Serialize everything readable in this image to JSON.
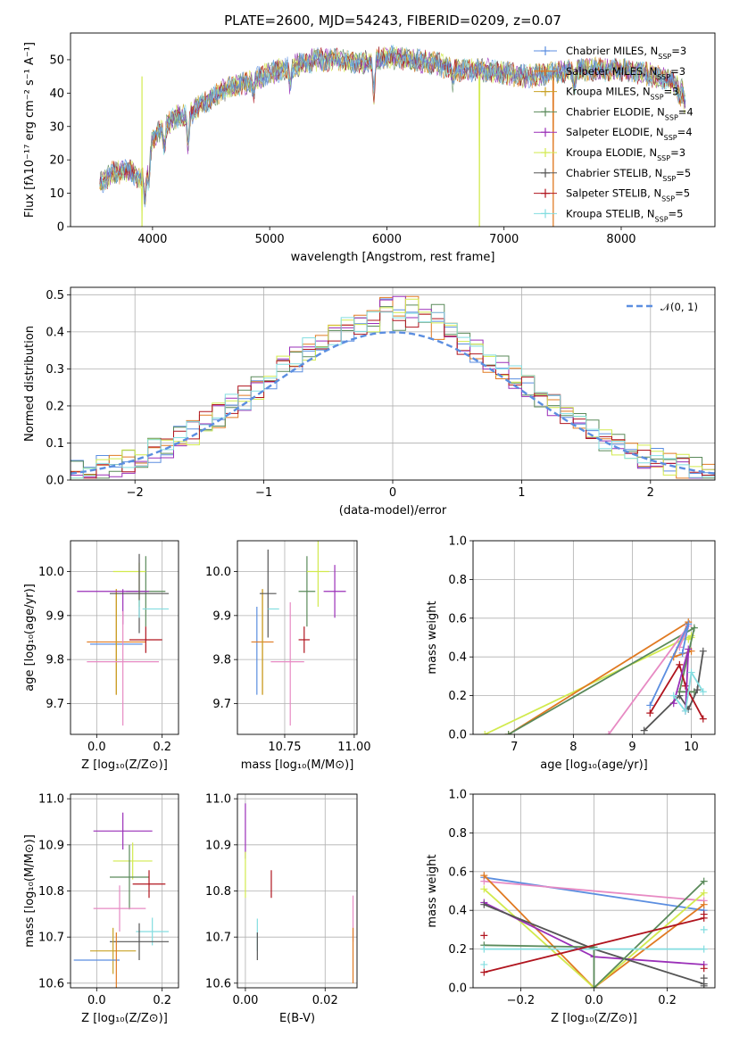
{
  "figure": {
    "title": "PLATE=2600, MJD=54243, FIBERID=0209, z=0.07"
  },
  "colors": {
    "blue": "#5b8ee0",
    "orange": "#e07a22",
    "olive": "#c9a227",
    "green": "#5a8a5a",
    "purple": "#9a2fb8",
    "yellowgreen": "#d2ea4e",
    "darkgray": "#555555",
    "red": "#b0141e",
    "cyan": "#83dde0",
    "pink": "#e78ac3"
  },
  "chart_data": [
    {
      "type": "line",
      "id": "spectrum",
      "xlabel": "wavelength [Angstrom, rest frame]",
      "ylabel": "Flux [fλ10⁻¹⁷ erg cm⁻² s⁻¹ A⁻¹]",
      "xlim": [
        3300,
        8800
      ],
      "ylim": [
        0,
        58
      ],
      "xticks": [
        4000,
        5000,
        6000,
        7000,
        8000
      ],
      "yticks": [
        0,
        10,
        20,
        30,
        40,
        50
      ],
      "grid": false,
      "legend_position": "top-right",
      "continuum": [
        [
          3550,
          13
        ],
        [
          3650,
          16
        ],
        [
          3800,
          17
        ],
        [
          3900,
          14
        ],
        [
          3950,
          17
        ],
        [
          4000,
          26
        ],
        [
          4100,
          30
        ],
        [
          4200,
          33
        ],
        [
          4300,
          33
        ],
        [
          4400,
          36
        ],
        [
          4600,
          41
        ],
        [
          4800,
          43
        ],
        [
          5000,
          46
        ],
        [
          5200,
          48
        ],
        [
          5400,
          50
        ],
        [
          5600,
          50
        ],
        [
          5800,
          49
        ],
        [
          6000,
          51
        ],
        [
          6200,
          50
        ],
        [
          6400,
          49
        ],
        [
          6600,
          47
        ],
        [
          6800,
          47
        ],
        [
          7000,
          46
        ],
        [
          7200,
          45
        ],
        [
          7400,
          46
        ],
        [
          7600,
          47
        ],
        [
          7800,
          47
        ],
        [
          8000,
          47
        ],
        [
          8200,
          46
        ],
        [
          8400,
          44
        ],
        [
          8550,
          40
        ]
      ],
      "absorption": [
        [
          3934,
          8
        ],
        [
          3969,
          7
        ],
        [
          4101,
          6
        ],
        [
          4304,
          9
        ],
        [
          4861,
          4
        ],
        [
          5175,
          6
        ],
        [
          5890,
          10
        ],
        [
          6563,
          4
        ],
        [
          7600,
          5
        ],
        [
          8498,
          3
        ],
        [
          8542,
          4
        ]
      ],
      "dropouts": [
        [
          3910,
          0
        ],
        [
          6790,
          0
        ],
        [
          7420,
          0
        ]
      ],
      "legend": [
        "Chabrier MILES, N_SSP=3",
        "Salpeter MILES, N_SSP=3",
        "Kroupa MILES, N_SSP=3",
        "Chabrier ELODIE, N_SSP=4",
        "Salpeter ELODIE, N_SSP=4",
        "Kroupa ELODIE, N_SSP=3",
        "Chabrier STELIB, N_SSP=5",
        "Salpeter STELIB, N_SSP=5",
        "Kroupa STELIB, N_SSP=5"
      ],
      "legend_colors": [
        "blue",
        "orange",
        "olive",
        "green",
        "purple",
        "yellowgreen",
        "darkgray",
        "red",
        "cyan"
      ]
    },
    {
      "type": "step",
      "id": "residuals",
      "xlabel": "(data-model)/error",
      "ylabel": "Normed distribution",
      "xlim": [
        -2.5,
        2.5
      ],
      "ylim": [
        0,
        0.52
      ],
      "xticks": [
        -2,
        -1,
        0,
        1,
        2
      ],
      "yticks": [
        0.0,
        0.1,
        0.2,
        0.3,
        0.4,
        0.5
      ],
      "grid": true,
      "legend_position": "top-right",
      "gaussian_label": "𝒩(0, 1)",
      "bin_width": 0.1,
      "series_colors": [
        "blue",
        "orange",
        "green",
        "purple",
        "yellowgreen",
        "red",
        "cyan"
      ]
    },
    {
      "type": "scatter-errorbar",
      "id": "age_vs_Z",
      "xlabel": "Z [log₁₀(Z/Z⊙)]",
      "ylabel": "age  [log₁₀(age/yr)]",
      "xlim": [
        -0.08,
        0.25
      ],
      "ylim": [
        9.63,
        10.07
      ],
      "xticks": [
        0.0,
        0.2
      ],
      "yticks": [
        9.7,
        9.8,
        9.9,
        10.0
      ],
      "grid": true,
      "points": [
        {
          "c": "blue",
          "x": 0.06,
          "xe": 0.08,
          "y": 9.835,
          "ye": 0.0
        },
        {
          "c": "orange",
          "x": 0.06,
          "xe": 0.09,
          "y": 9.84,
          "ye": 0.12
        },
        {
          "c": "olive",
          "x": 0.06,
          "xe": 0.0,
          "y": 9.84,
          "ye": 0.12
        },
        {
          "c": "green",
          "x": 0.15,
          "xe": 0.06,
          "y": 9.955,
          "ye": 0.08
        },
        {
          "c": "purple",
          "x": 0.05,
          "xe": 0.11,
          "y": 9.955,
          "ye": 0.0
        },
        {
          "c": "purple",
          "x": 0.08,
          "xe": 0.0,
          "y": 9.92,
          "ye": 0.04
        },
        {
          "c": "yellowgreen",
          "x": 0.1,
          "xe": 0.05,
          "y": 10.0,
          "ye": 0.0
        },
        {
          "c": "yellowgreen",
          "x": 0.13,
          "xe": 0.0,
          "y": 9.97,
          "ye": 0.05
        },
        {
          "c": "darkgray",
          "x": 0.13,
          "xe": 0.09,
          "y": 9.95,
          "ye": 0.09
        },
        {
          "c": "red",
          "x": 0.15,
          "xe": 0.05,
          "y": 9.845,
          "ye": 0.03
        },
        {
          "c": "cyan",
          "x": 0.18,
          "xe": 0.04,
          "y": 9.915,
          "ye": 0.0
        },
        {
          "c": "cyan",
          "x": 0.13,
          "xe": 0.0,
          "y": 9.915,
          "ye": 0.02
        },
        {
          "c": "pink",
          "x": 0.08,
          "xe": 0.11,
          "y": 9.795,
          "ye": 0.0
        },
        {
          "c": "pink",
          "x": 0.08,
          "xe": 0.0,
          "y": 9.78,
          "ye": 0.13
        }
      ]
    },
    {
      "type": "scatter-errorbar",
      "id": "age_vs_mass",
      "xlabel": "mass [log₁₀(M/M⊙)]",
      "ylabel": "",
      "xlim": [
        10.58,
        11.01
      ],
      "ylim": [
        9.63,
        10.07
      ],
      "xticks": [
        10.75,
        11.0
      ],
      "yticks": [
        9.7,
        9.8,
        9.9,
        10.0
      ],
      "grid": true,
      "points": [
        {
          "c": "blue",
          "x": 10.65,
          "xe": 0.0,
          "y": 9.82,
          "ye": 0.1
        },
        {
          "c": "orange",
          "x": 10.67,
          "xe": 0.04,
          "y": 9.84,
          "ye": 0.12
        },
        {
          "c": "olive",
          "x": 10.67,
          "xe": 0.0,
          "y": 9.84,
          "ye": 0.12
        },
        {
          "c": "darkgray",
          "x": 10.69,
          "xe": 0.03,
          "y": 9.95,
          "ye": 0.1
        },
        {
          "c": "cyan",
          "x": 10.71,
          "xe": 0.02,
          "y": 9.915,
          "ye": 0.0
        },
        {
          "c": "pink",
          "x": 10.76,
          "xe": 0.06,
          "y": 9.795,
          "ye": 0.0
        },
        {
          "c": "pink",
          "x": 10.77,
          "xe": 0.0,
          "y": 9.79,
          "ye": 0.14
        },
        {
          "c": "red",
          "x": 10.82,
          "xe": 0.02,
          "y": 9.845,
          "ye": 0.03
        },
        {
          "c": "green",
          "x": 10.83,
          "xe": 0.03,
          "y": 9.955,
          "ye": 0.08
        },
        {
          "c": "yellowgreen",
          "x": 10.87,
          "xe": 0.04,
          "y": 10.0,
          "ye": 0.08
        },
        {
          "c": "purple",
          "x": 10.93,
          "xe": 0.04,
          "y": 9.955,
          "ye": 0.06
        }
      ]
    },
    {
      "type": "line",
      "id": "mass_weight_vs_age",
      "xlabel": "age  [log₁₀(age/yr)]",
      "ylabel": "mass weight",
      "xlim": [
        6.3,
        10.4
      ],
      "ylim": [
        0,
        1
      ],
      "xticks": [
        7,
        8,
        9,
        10
      ],
      "yticks": [
        0.0,
        0.2,
        0.4,
        0.6,
        0.8,
        1.0
      ],
      "grid": true,
      "series": [
        {
          "c": "yellowgreen",
          "x": [
            6.5,
            10.0,
            9.95,
            10.0
          ],
          "y": [
            0.0,
            0.51,
            0.49,
            0.5
          ]
        },
        {
          "c": "orange",
          "x": [
            6.9,
            9.95,
            9.7,
            10.0
          ],
          "y": [
            0.0,
            0.58,
            0.4,
            0.43
          ]
        },
        {
          "c": "green",
          "x": [
            6.9,
            10.05,
            9.8,
            10.05
          ],
          "y": [
            0.0,
            0.55,
            0.22,
            0.22
          ]
        },
        {
          "c": "pink",
          "x": [
            8.6,
            9.95,
            9.8
          ],
          "y": [
            0.0,
            0.56,
            0.45
          ]
        },
        {
          "c": "blue",
          "x": [
            9.3,
            9.95,
            9.85
          ],
          "y": [
            0.15,
            0.57,
            0.42
          ]
        },
        {
          "c": "darkgray",
          "x": [
            9.2,
            9.8,
            9.95,
            10.1,
            10.2
          ],
          "y": [
            0.02,
            0.2,
            0.13,
            0.23,
            0.43
          ]
        },
        {
          "c": "red",
          "x": [
            9.3,
            9.8,
            9.9,
            10.2
          ],
          "y": [
            0.11,
            0.36,
            0.25,
            0.08
          ]
        },
        {
          "c": "purple",
          "x": [
            9.7,
            9.95,
            9.9
          ],
          "y": [
            0.16,
            0.44,
            0.12
          ]
        },
        {
          "c": "cyan",
          "x": [
            9.7,
            9.9,
            10.0,
            10.2
          ],
          "y": [
            0.2,
            0.12,
            0.32,
            0.22
          ]
        }
      ]
    },
    {
      "type": "scatter-errorbar",
      "id": "mass_vs_Z",
      "xlabel": "Z [log₁₀(Z/Z⊙)]",
      "ylabel": "mass [log₁₀(M/M⊙)]",
      "xlim": [
        -0.08,
        0.25
      ],
      "ylim": [
        10.59,
        11.01
      ],
      "xticks": [
        0.0,
        0.2
      ],
      "yticks": [
        10.6,
        10.7,
        10.8,
        10.9,
        11.0
      ],
      "grid": true,
      "points": [
        {
          "c": "purple",
          "x": 0.08,
          "xe": 0.09,
          "y": 10.93,
          "ye": 0.04
        },
        {
          "c": "yellowgreen",
          "x": 0.11,
          "xe": 0.06,
          "y": 10.865,
          "ye": 0.04
        },
        {
          "c": "green",
          "x": 0.1,
          "xe": 0.06,
          "y": 10.83,
          "ye": 0.07
        },
        {
          "c": "red",
          "x": 0.16,
          "xe": 0.05,
          "y": 10.815,
          "ye": 0.03
        },
        {
          "c": "pink",
          "x": 0.07,
          "xe": 0.08,
          "y": 10.762,
          "ye": 0.05
        },
        {
          "c": "cyan",
          "x": 0.17,
          "xe": 0.05,
          "y": 10.712,
          "ye": 0.03
        },
        {
          "c": "darkgray",
          "x": 0.13,
          "xe": 0.09,
          "y": 10.69,
          "ye": 0.04
        },
        {
          "c": "olive",
          "x": 0.05,
          "xe": 0.07,
          "y": 10.67,
          "ye": 0.05
        },
        {
          "c": "blue",
          "x": 0.0,
          "xe": 0.07,
          "y": 10.65,
          "ye": 0.0
        },
        {
          "c": "orange",
          "x": 0.06,
          "xe": 0.0,
          "y": 10.65,
          "ye": 0.06
        }
      ]
    },
    {
      "type": "scatter-errorbar",
      "id": "mass_vs_ebv",
      "xlabel": "E(B-V)",
      "ylabel": "",
      "xlim": [
        -0.002,
        0.028
      ],
      "ylim": [
        10.59,
        11.01
      ],
      "xticks": [
        0.0,
        0.02
      ],
      "yticks": [
        10.6,
        10.7,
        10.8,
        10.9,
        11.0
      ],
      "grid": true,
      "points": [
        {
          "c": "purple",
          "x": 0.0,
          "xe": 0.0,
          "y": 10.93,
          "ye": 0.06
        },
        {
          "c": "yellowgreen",
          "x": 0.0,
          "xe": 0.0,
          "y": 10.835,
          "ye": 0.05
        },
        {
          "c": "red",
          "x": 0.0065,
          "xe": 0.0,
          "y": 10.815,
          "ye": 0.03
        },
        {
          "c": "pink",
          "x": 0.027,
          "xe": 0.0,
          "y": 10.74,
          "ye": 0.05
        },
        {
          "c": "cyan",
          "x": 0.003,
          "xe": 0.0,
          "y": 10.705,
          "ye": 0.035
        },
        {
          "c": "darkgray",
          "x": 0.003,
          "xe": 0.0,
          "y": 10.68,
          "ye": 0.03
        },
        {
          "c": "orange",
          "x": 0.027,
          "xe": 0.0,
          "y": 10.66,
          "ye": 0.06
        }
      ]
    },
    {
      "type": "line",
      "id": "mass_weight_vs_Z",
      "xlabel": "Z [log₁₀(Z/Z⊙)]",
      "ylabel": "mass weight",
      "xlim": [
        -0.33,
        0.33
      ],
      "ylim": [
        0,
        1
      ],
      "xticks": [
        -0.2,
        0.0,
        0.2
      ],
      "yticks": [
        0.0,
        0.2,
        0.4,
        0.6,
        0.8,
        1.0
      ],
      "grid": true,
      "series": [
        {
          "c": "blue",
          "x": [
            -0.3,
            0.3
          ],
          "y": [
            0.57,
            0.4
          ]
        },
        {
          "c": "pink",
          "x": [
            -0.3,
            0.3
          ],
          "y": [
            0.55,
            0.45
          ]
        },
        {
          "c": "orange",
          "x": [
            -0.3,
            0.0,
            0.3
          ],
          "y": [
            0.58,
            0.0,
            0.43
          ]
        },
        {
          "c": "yellowgreen",
          "x": [
            -0.3,
            0.0,
            0.3
          ],
          "y": [
            0.51,
            0.0,
            0.49
          ]
        },
        {
          "c": "purple",
          "x": [
            -0.3,
            0.0,
            0.3
          ],
          "y": [
            0.44,
            0.16,
            0.12
          ]
        },
        {
          "c": "darkgray",
          "x": [
            -0.3,
            0.0,
            0.3
          ],
          "y": [
            0.43,
            0.2,
            0.02
          ]
        },
        {
          "c": "green",
          "x": [
            -0.3,
            0.0,
            0.0,
            0.3
          ],
          "y": [
            0.22,
            0.21,
            0.0,
            0.55
          ]
        },
        {
          "c": "cyan",
          "x": [
            -0.3,
            0.3
          ],
          "y": [
            0.2,
            0.2
          ]
        },
        {
          "c": "red",
          "x": [
            -0.3,
            0.3
          ],
          "y": [
            0.08,
            0.36
          ]
        }
      ],
      "markers": [
        {
          "c": "red",
          "x": -0.3,
          "y": 0.27
        },
        {
          "c": "cyan",
          "x": -0.3,
          "y": 0.12
        },
        {
          "c": "darkgray",
          "x": 0.3,
          "y": 0.05
        },
        {
          "c": "red",
          "x": 0.3,
          "y": 0.1
        },
        {
          "c": "cyan",
          "x": 0.3,
          "y": 0.3
        },
        {
          "c": "red",
          "x": 0.3,
          "y": 0.38
        },
        {
          "c": "darkgray",
          "x": 0.3,
          "y": 0.01
        }
      ]
    }
  ]
}
